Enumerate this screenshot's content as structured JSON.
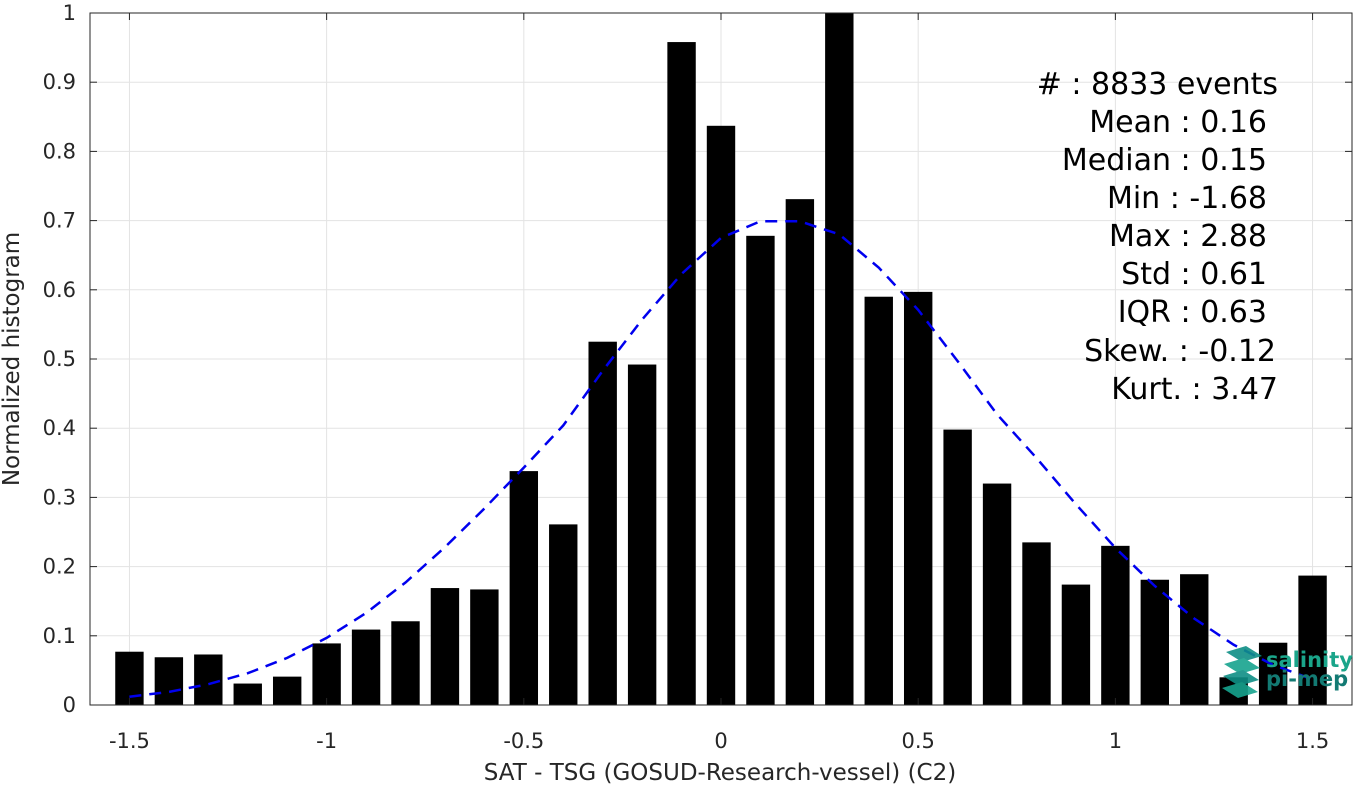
{
  "chart_data": {
    "type": "bar",
    "xlabel": "SAT - TSG (GOSUD-Research-vessel) (C2)",
    "ylabel": "Normalized histogram",
    "xlim": [
      -1.6,
      1.6
    ],
    "ylim": [
      0,
      1
    ],
    "grid": true,
    "bar_width": 0.072,
    "bar_color": "#000000",
    "x": [
      -1.5,
      -1.4,
      -1.3,
      -1.2,
      -1.1,
      -1.0,
      -0.9,
      -0.8,
      -0.7,
      -0.6,
      -0.5,
      -0.4,
      -0.3,
      -0.2,
      -0.1,
      0.0,
      0.1,
      0.2,
      0.3,
      0.4,
      0.5,
      0.6,
      0.7,
      0.8,
      0.9,
      1.0,
      1.1,
      1.2,
      1.3,
      1.4,
      1.5
    ],
    "values": [
      0.077,
      0.069,
      0.073,
      0.031,
      0.041,
      0.089,
      0.109,
      0.121,
      0.169,
      0.167,
      0.338,
      0.261,
      0.525,
      0.492,
      0.958,
      0.837,
      0.678,
      0.731,
      1.0,
      0.59,
      0.597,
      0.398,
      0.32,
      0.235,
      0.174,
      0.23,
      0.181,
      0.189,
      0.04,
      0.09,
      0.187
    ],
    "fit_curve": {
      "style": "dashed",
      "color": "#0000ee",
      "x": [
        -1.5,
        -1.4,
        -1.3,
        -1.2,
        -1.1,
        -1.0,
        -0.9,
        -0.8,
        -0.7,
        -0.6,
        -0.5,
        -0.4,
        -0.3,
        -0.2,
        -0.1,
        0.0,
        0.1,
        0.2,
        0.3,
        0.4,
        0.5,
        0.6,
        0.7,
        0.8,
        0.9,
        1.0,
        1.1,
        1.2,
        1.3,
        1.4,
        1.5
      ],
      "y": [
        0.012,
        0.019,
        0.03,
        0.046,
        0.068,
        0.097,
        0.133,
        0.177,
        0.228,
        0.284,
        0.343,
        0.404,
        0.483,
        0.557,
        0.623,
        0.675,
        0.699,
        0.699,
        0.68,
        0.632,
        0.571,
        0.497,
        0.42,
        0.357,
        0.29,
        0.227,
        0.172,
        0.125,
        0.087,
        0.058,
        0.037
      ]
    },
    "x_ticks": [
      -1.5,
      -1,
      -0.5,
      0,
      0.5,
      1,
      1.5
    ],
    "x_tick_labels": [
      "-1.5",
      "-1",
      "-0.5",
      "0",
      "0.5",
      "1",
      "1.5"
    ],
    "y_ticks": [
      0,
      0.1,
      0.2,
      0.3,
      0.4,
      0.5,
      0.6,
      0.7,
      0.8,
      0.9,
      1
    ],
    "y_tick_labels": [
      "0",
      "0.1",
      "0.2",
      "0.3",
      "0.4",
      "0.5",
      "0.6",
      "0.7",
      "0.8",
      "0.9",
      "1"
    ],
    "annotations": [
      "#  : 8833 events",
      "Mean : 0.16",
      "Median : 0.15",
      "Min : -1.68",
      "Max : 2.88",
      "Std : 0.61",
      "IQR : 0.63",
      "Skew. : -0.12",
      "Kurt. : 3.47"
    ]
  },
  "logo": {
    "line1": "salinity",
    "line2": "pi-mep",
    "color": "#1aa58a"
  }
}
